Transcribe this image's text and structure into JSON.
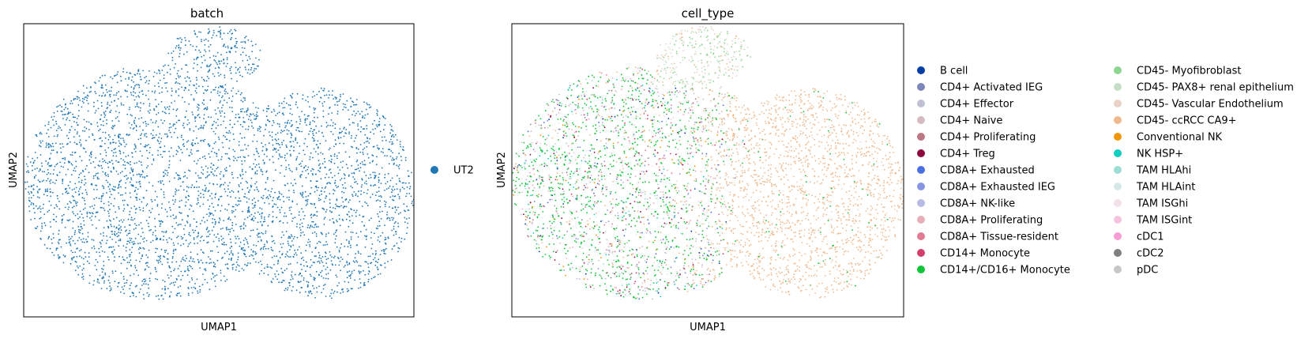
{
  "chart_data": [
    {
      "type": "scatter",
      "title": "batch",
      "xlabel": "UMAP1",
      "ylabel": "UMAP2",
      "xticks": [],
      "yticks": [],
      "legend": {
        "placement": "right",
        "columns": 1
      },
      "series": [
        {
          "name": "UT2",
          "color": "#1f77b4"
        }
      ]
    },
    {
      "type": "scatter",
      "title": "cell_type",
      "xlabel": "UMAP1",
      "ylabel": "UMAP2",
      "xticks": [],
      "yticks": [],
      "legend": {
        "placement": "right",
        "columns": 2
      },
      "series": [
        {
          "name": "B cell",
          "color": "#023fa5"
        },
        {
          "name": "CD4+ Activated IEG",
          "color": "#7d87b9"
        },
        {
          "name": "CD4+ Effector",
          "color": "#bec1d4"
        },
        {
          "name": "CD4+ Naive",
          "color": "#d6bcc0"
        },
        {
          "name": "CD4+ Proliferating",
          "color": "#bb7784"
        },
        {
          "name": "CD4+ Treg",
          "color": "#8e063b"
        },
        {
          "name": "CD8A+ Exhausted",
          "color": "#4a6fe3"
        },
        {
          "name": "CD8A+ Exhausted IEG",
          "color": "#8595e1"
        },
        {
          "name": "CD8A+ NK-like",
          "color": "#b5bbe3"
        },
        {
          "name": "CD8A+ Proliferating",
          "color": "#e6afb9"
        },
        {
          "name": "CD8A+ Tissue-resident",
          "color": "#e07b91"
        },
        {
          "name": "CD14+ Monocyte",
          "color": "#d33f6a"
        },
        {
          "name": "CD14+/CD16+ Monocyte",
          "color": "#11c638"
        },
        {
          "name": "CD45- Myofibroblast",
          "color": "#8dd593"
        },
        {
          "name": "CD45- PAX8+ renal epithelium",
          "color": "#c6dec7"
        },
        {
          "name": "CD45- Vascular Endothelium",
          "color": "#ead3c6"
        },
        {
          "name": "CD45- ccRCC CA9+",
          "color": "#f0b98d"
        },
        {
          "name": "Conventional NK",
          "color": "#ef9708"
        },
        {
          "name": "NK HSP+",
          "color": "#0fcfc0"
        },
        {
          "name": "TAM HLAhi",
          "color": "#9cded6"
        },
        {
          "name": "TAM HLAint",
          "color": "#d5eae7"
        },
        {
          "name": "TAM ISGhi",
          "color": "#f3e1eb"
        },
        {
          "name": "TAM ISGint",
          "color": "#f6c4e1"
        },
        {
          "name": "cDC1",
          "color": "#f79cd4"
        },
        {
          "name": "cDC2",
          "color": "#7f7f7f"
        },
        {
          "name": "pDC",
          "color": "#c7c7c7"
        }
      ]
    }
  ]
}
